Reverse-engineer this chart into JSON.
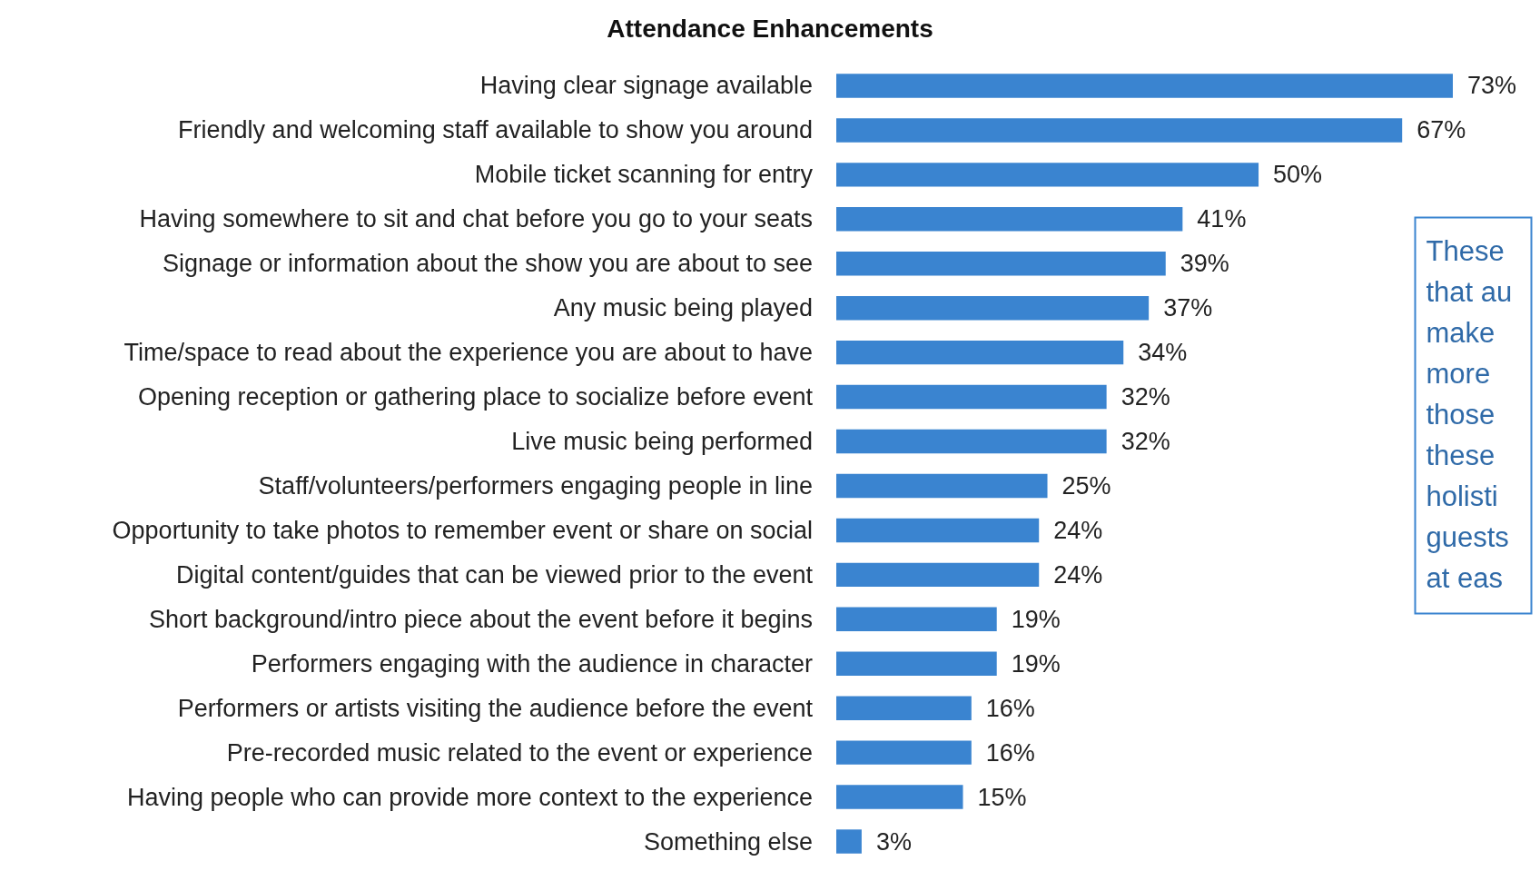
{
  "chart_data": {
    "type": "bar",
    "orientation": "horizontal",
    "title": "Attendance Enhancements",
    "categories": [
      "Having clear signage available",
      "Friendly and welcoming staff available to show you around",
      "Mobile ticket scanning for entry",
      "Having somewhere to sit and chat before you go to your seats",
      "Signage or information about the show you are about to see",
      "Any music being played",
      "Time/space to read about the experience you are about to have",
      "Opening reception or gathering place to socialize before event",
      "Live music being performed",
      "Staff/volunteers/performers engaging people in line",
      "Opportunity to take photos to remember event or share on social",
      "Digital content/guides that can be viewed prior to the event",
      "Short background/intro piece about the event before it begins",
      "Performers engaging with the audience in character",
      "Performers or artists visiting the audience before the event",
      "Pre-recorded music related to the event or experience",
      "Having people who can provide more context to the experience",
      "Something else"
    ],
    "values": [
      73,
      67,
      50,
      41,
      39,
      37,
      34,
      32,
      32,
      25,
      24,
      24,
      19,
      19,
      16,
      16,
      15,
      3
    ],
    "value_labels": [
      "73%",
      "67%",
      "50%",
      "41%",
      "39%",
      "37%",
      "34%",
      "32%",
      "32%",
      "25%",
      "24%",
      "24%",
      "19%",
      "19%",
      "16%",
      "16%",
      "15%",
      "3%"
    ],
    "color": "#3a84d0",
    "annotations": [
      "These\nthat au\nmake\nmore\nthose\nthese\nholisti\nguests\nat eas"
    ]
  }
}
